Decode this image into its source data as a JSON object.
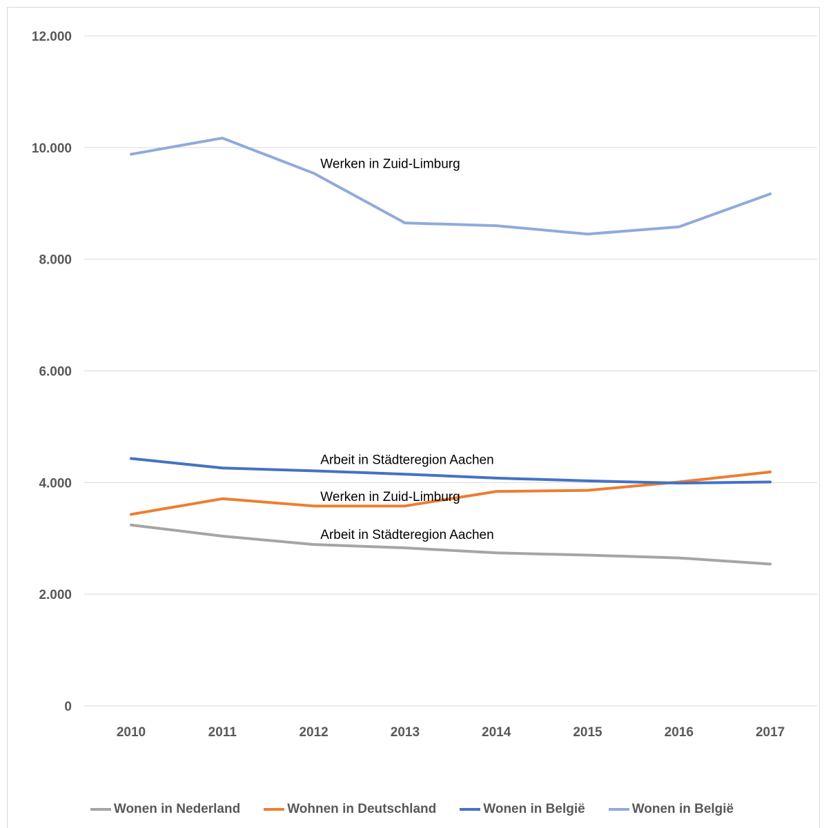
{
  "chart_data": {
    "type": "line",
    "title": "",
    "xlabel": "",
    "ylabel": "",
    "x": [
      "2010",
      "2011",
      "2012",
      "2013",
      "2014",
      "2015",
      "2016",
      "2017"
    ],
    "ylim": [
      0,
      12000
    ],
    "yticks": [
      0,
      2000,
      4000,
      6000,
      8000,
      10000,
      12000
    ],
    "ytick_labels": [
      "0",
      "2.000",
      "4.000",
      "6.000",
      "8.000",
      "10.000",
      "12.000"
    ],
    "grid": "horizontal",
    "legend_position": "bottom",
    "series": [
      {
        "name": "Wonen in Nederland",
        "color": "#a5a5a5",
        "values": [
          3240,
          3040,
          2890,
          2830,
          2740,
          2700,
          2650,
          2540
        ]
      },
      {
        "name": "Wohnen in Deutschland",
        "color": "#ed7d31",
        "values": [
          3430,
          3710,
          3580,
          3580,
          3840,
          3860,
          4010,
          4190
        ]
      },
      {
        "name": "Wonen in België",
        "color": "#4472c4",
        "values": [
          4430,
          4260,
          4210,
          4150,
          4080,
          4030,
          3990,
          4010
        ]
      },
      {
        "name": "Wonen in België",
        "color": "#8faadc",
        "values": [
          9880,
          10170,
          9540,
          8650,
          8600,
          8450,
          8580,
          9170
        ]
      }
    ],
    "annotations": [
      {
        "text": "Werken in Zuid-Limburg",
        "x": 2012.3,
        "y": 9720
      },
      {
        "text": "Arbeit in Städteregion Aachen",
        "x": 2012.3,
        "y": 4420
      },
      {
        "text": "Werken in Zuid-Limburg",
        "x": 2012.3,
        "y": 3760
      },
      {
        "text": "Arbeit in Städteregion Aachen",
        "x": 2012.3,
        "y": 3080
      }
    ]
  }
}
